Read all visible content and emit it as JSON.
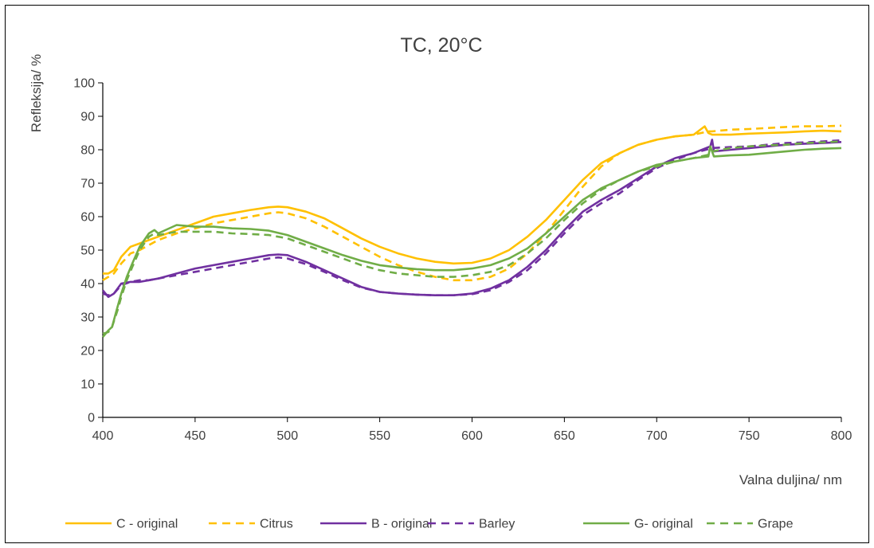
{
  "chart_data": {
    "type": "line",
    "title": "TC, 20°C",
    "xlabel": "Valna duljina/ nm",
    "ylabel": "Refleksija/ %",
    "xlim": [
      400,
      800
    ],
    "ylim": [
      0,
      100
    ],
    "xticks": [
      400,
      450,
      500,
      550,
      600,
      650,
      700,
      750,
      800
    ],
    "yticks": [
      0,
      10,
      20,
      30,
      40,
      50,
      60,
      70,
      80,
      90,
      100
    ],
    "grid": false,
    "legend_position": "bottom",
    "series": [
      {
        "name": "C - original",
        "color": "#FFC000",
        "dash": "solid",
        "x": [
          400,
          403,
          406,
          410,
          415,
          420,
          425,
          430,
          440,
          450,
          460,
          470,
          480,
          490,
          495,
          500,
          510,
          520,
          530,
          540,
          550,
          560,
          570,
          580,
          590,
          600,
          610,
          620,
          630,
          640,
          650,
          660,
          670,
          680,
          690,
          700,
          710,
          720,
          726,
          728,
          730,
          740,
          750,
          760,
          770,
          780,
          790,
          800
        ],
        "y": [
          43,
          43,
          44,
          48,
          51,
          52,
          53,
          54,
          56,
          58,
          60,
          61,
          62,
          62.8,
          63,
          62.8,
          61.5,
          59.5,
          56.5,
          53.5,
          51,
          49,
          47.5,
          46.5,
          46,
          46.2,
          47.5,
          50,
          54,
          59,
          65,
          71,
          76,
          79,
          81.5,
          83,
          84,
          84.5,
          87,
          85,
          84.5,
          84.5,
          84.8,
          85,
          85.2,
          85.5,
          85.7,
          85.5
        ]
      },
      {
        "name": "Citrus",
        "color": "#FFC000",
        "dash": "dashed",
        "x": [
          400,
          403,
          406,
          410,
          415,
          420,
          425,
          430,
          440,
          450,
          460,
          470,
          480,
          490,
          495,
          500,
          510,
          520,
          530,
          540,
          550,
          560,
          570,
          580,
          590,
          600,
          610,
          620,
          630,
          640,
          650,
          660,
          670,
          680,
          690,
          700,
          710,
          720,
          728,
          730,
          740,
          750,
          760,
          770,
          780,
          790,
          800
        ],
        "y": [
          41,
          42,
          43,
          46,
          49,
          50,
          51.5,
          53,
          55,
          56.5,
          58,
          59,
          60,
          61,
          61.3,
          61,
          59.5,
          57,
          54,
          51,
          48,
          45.5,
          43.5,
          42,
          41,
          41,
          42,
          44.5,
          49,
          55,
          62,
          69,
          75,
          79,
          81.5,
          83,
          84,
          84.5,
          85.5,
          85.5,
          86,
          86.2,
          86.5,
          86.8,
          87,
          87,
          87.2
        ]
      },
      {
        "name": "B - original",
        "color": "#7030A0",
        "dash": "solid",
        "x": [
          400,
          403,
          406,
          410,
          415,
          420,
          425,
          430,
          440,
          450,
          460,
          470,
          480,
          490,
          495,
          500,
          510,
          520,
          530,
          540,
          550,
          560,
          570,
          580,
          590,
          600,
          610,
          620,
          630,
          640,
          650,
          660,
          670,
          680,
          690,
          700,
          710,
          720,
          729,
          730,
          731,
          740,
          750,
          760,
          770,
          780,
          790,
          800
        ],
        "y": [
          38,
          36,
          37,
          40,
          40.5,
          40.5,
          41,
          41.5,
          43,
          44.5,
          45.5,
          46.5,
          47.5,
          48.5,
          48.7,
          48.5,
          46.5,
          44,
          41.5,
          39,
          37.5,
          37,
          36.7,
          36.5,
          36.5,
          37,
          38.5,
          41,
          45,
          50,
          56,
          61.5,
          65,
          68,
          71.5,
          75,
          77.5,
          79,
          81,
          83,
          79.5,
          80,
          80.5,
          81,
          81.5,
          81.8,
          82,
          82.3
        ]
      },
      {
        "name": "Barley",
        "color": "#7030A0",
        "dash": "dashed",
        "x": [
          400,
          403,
          406,
          410,
          415,
          420,
          425,
          430,
          440,
          450,
          460,
          470,
          480,
          490,
          495,
          500,
          510,
          520,
          530,
          540,
          550,
          560,
          570,
          580,
          590,
          600,
          610,
          620,
          630,
          640,
          650,
          660,
          670,
          680,
          690,
          700,
          710,
          720,
          730,
          740,
          750,
          760,
          770,
          780,
          790,
          800
        ],
        "y": [
          37,
          36.5,
          37,
          39.5,
          40.5,
          41,
          41,
          41.5,
          42.5,
          43.5,
          44.5,
          45.5,
          46.5,
          47.5,
          47.8,
          47.5,
          45.8,
          43.5,
          41,
          38.8,
          37.5,
          37,
          36.7,
          36.5,
          36.5,
          36.8,
          38,
          40.5,
          44,
          49,
          55,
          60.5,
          64,
          67,
          71,
          74.5,
          77,
          79,
          80.5,
          80.8,
          81,
          81.5,
          82,
          82.2,
          82.5,
          82.8
        ]
      },
      {
        "name": "G- original",
        "color": "#70AD47",
        "dash": "solid",
        "x": [
          400,
          403,
          405,
          408,
          410,
          413,
          416,
          420,
          425,
          428,
          430,
          440,
          450,
          460,
          470,
          480,
          490,
          500,
          510,
          520,
          530,
          540,
          550,
          560,
          570,
          580,
          590,
          600,
          610,
          620,
          630,
          640,
          650,
          660,
          670,
          680,
          690,
          700,
          710,
          720,
          728,
          729,
          731,
          740,
          750,
          760,
          770,
          780,
          790,
          800
        ],
        "y": [
          24,
          26,
          27,
          33,
          37,
          42,
          46,
          51,
          55,
          56,
          55,
          57.5,
          57,
          57,
          56.5,
          56.3,
          55.8,
          54.5,
          52.5,
          50.5,
          48.5,
          46.8,
          45.5,
          44.8,
          44.3,
          44,
          44,
          44.5,
          45.5,
          47.5,
          50.5,
          55,
          60,
          65,
          68.5,
          71,
          73.5,
          75.5,
          76.5,
          77.5,
          78,
          81,
          78,
          78.3,
          78.5,
          79,
          79.5,
          80,
          80.3,
          80.5
        ]
      },
      {
        "name": "Grape",
        "color": "#70AD47",
        "dash": "dashed",
        "x": [
          400,
          403,
          405,
          408,
          410,
          413,
          416,
          420,
          425,
          428,
          430,
          440,
          450,
          460,
          470,
          480,
          490,
          500,
          510,
          520,
          530,
          540,
          550,
          560,
          570,
          580,
          590,
          600,
          610,
          620,
          630,
          640,
          650,
          660,
          670,
          680,
          690,
          700,
          710,
          720,
          728,
          730,
          740,
          750,
          760,
          770,
          780,
          790,
          800
        ],
        "y": [
          25,
          25.5,
          27,
          32,
          36,
          41,
          45,
          50,
          54,
          55,
          54.5,
          55.5,
          55.5,
          55.5,
          55,
          54.8,
          54.5,
          53.5,
          51.5,
          49.5,
          47.5,
          45.5,
          44,
          43,
          42.5,
          42,
          42,
          42.5,
          43.5,
          45.5,
          49,
          53.5,
          59,
          64,
          68,
          71,
          73.5,
          75,
          76.5,
          77.5,
          78.5,
          79.5,
          80.5,
          81,
          81.3,
          81.5,
          82,
          82.2,
          82.5
        ]
      }
    ]
  }
}
